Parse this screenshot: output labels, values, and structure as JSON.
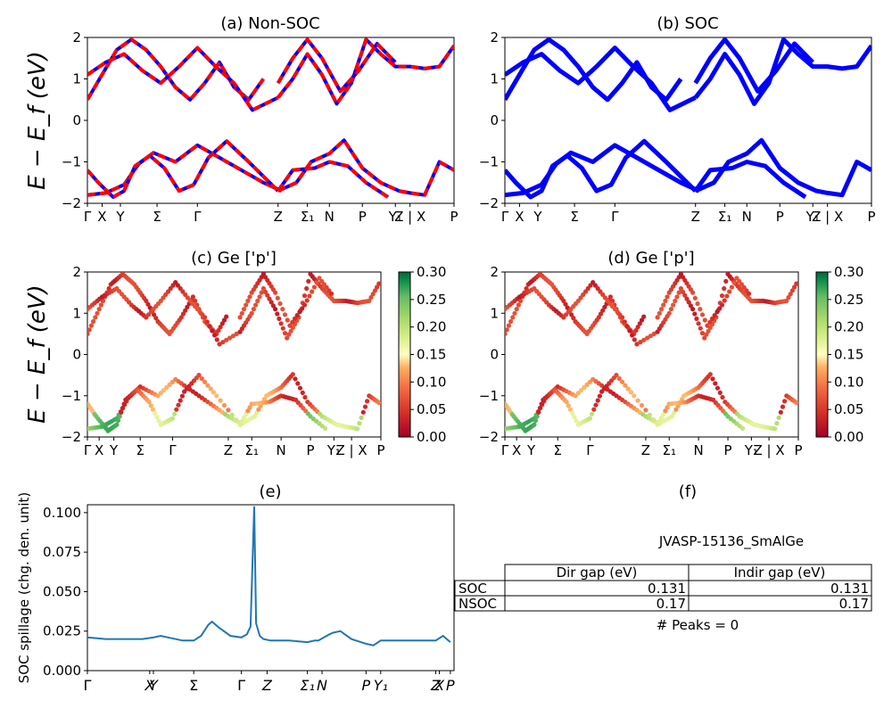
{
  "colors": {
    "nonsoc_red": "#ff0000",
    "soc_blue": "#0000ff",
    "spillage_line": "#1f77b4",
    "colormap": "RdYlGn"
  },
  "ylabel_band": "E − E_f (eV)",
  "kpath_full": [
    "Γ",
    "X",
    "Y",
    "Σ",
    "Γ",
    "Z",
    "Σ₁",
    "N",
    "P",
    "Y₁",
    "Z | X",
    "P"
  ],
  "kpath_c": [
    "Γ",
    "X",
    "Y",
    "Σ",
    "Γ",
    "Z",
    "Σ₁",
    "N",
    "P",
    "Y₁",
    "Z | X",
    "P"
  ],
  "kpath_e": [
    "Γ",
    "X",
    "Y",
    "Σ",
    "Γ",
    "Z",
    "Σ₁",
    "N",
    "P",
    "Y₁",
    "Z",
    "X",
    "P"
  ],
  "panels": {
    "a": {
      "title": "(a) Non-SOC"
    },
    "b": {
      "title": "(b) SOC"
    },
    "c": {
      "title": "(c)  Ge ['p']"
    },
    "d": {
      "title": "(d) Ge ['p']"
    },
    "e": {
      "title": "(e)",
      "ylabel": "SOC spillage (chg. den. unit)"
    },
    "f": {
      "title": "(f)"
    }
  },
  "colorbar": {
    "ticks": [
      "0.00",
      "0.05",
      "0.10",
      "0.15",
      "0.20",
      "0.25",
      "0.30"
    ],
    "min": 0,
    "max": 0.3
  },
  "table": {
    "material": "JVASP-15136_SmAlGe",
    "headers": [
      "Dir gap (eV)",
      "Indir gap (eV)"
    ],
    "rows": [
      {
        "label": "SOC",
        "dir": "0.131",
        "indir": "0.131"
      },
      {
        "label": "NSOC",
        "dir": "0.17",
        "indir": "0.17"
      }
    ],
    "peaks": "# Peaks = 0"
  },
  "chart_data": [
    {
      "type": "line",
      "title": "(a) Non-SOC",
      "ylabel": "E − E_f (eV)",
      "ylim": [
        -2,
        2
      ],
      "yticks": [
        -2,
        -1,
        0,
        1,
        2
      ],
      "x_ticks": [
        0,
        0.04,
        0.09,
        0.19,
        0.3,
        0.52,
        0.6,
        0.66,
        0.75,
        0.84,
        0.88,
        1.0
      ],
      "x_tick_labels": [
        "Γ",
        "X",
        "Y",
        "Σ",
        "Γ",
        "Z",
        "Σ₁",
        "N",
        "P",
        "Y₁",
        "Z | X",
        "P"
      ],
      "series": [
        {
          "x": [
            0,
            0.05,
            0.1,
            0.14,
            0.18,
            0.24,
            0.3,
            0.36,
            0.42,
            0.48,
            0.53
          ],
          "y": [
            -1.8,
            -1.75,
            -1.55,
            -1.05,
            -0.78,
            -1.0,
            -0.6,
            -0.9,
            -1.2,
            -1.5,
            -1.7
          ]
        },
        {
          "x": [
            0,
            0.03,
            0.07,
            0.1,
            0.13,
            0.17,
            0.21,
            0.25,
            0.29,
            0.33,
            0.38,
            0.44,
            0.52
          ],
          "y": [
            -1.2,
            -1.5,
            -1.85,
            -1.7,
            -1.1,
            -0.85,
            -1.15,
            -1.7,
            -1.55,
            -0.9,
            -0.5,
            -1.0,
            -1.7
          ]
        },
        {
          "x": [
            0.52,
            0.57,
            0.61,
            0.66,
            0.7,
            0.75,
            0.8,
            0.85,
            0.88,
            0.92,
            0.96,
            1.0
          ],
          "y": [
            -1.7,
            -1.5,
            -1.0,
            -0.8,
            -0.48,
            -1.15,
            -1.5,
            -1.7,
            -1.75,
            -1.8,
            -1.0,
            -1.2
          ]
        },
        {
          "x": [
            0.52,
            0.56,
            0.62,
            0.66,
            0.71,
            0.76,
            0.82
          ],
          "y": [
            -1.7,
            -1.2,
            -1.15,
            -1.0,
            -1.1,
            -1.5,
            -1.85
          ]
        },
        {
          "x": [
            0,
            0.04,
            0.08,
            0.12,
            0.16,
            0.2,
            0.24,
            0.28,
            0.32,
            0.36,
            0.4,
            0.44,
            0.48
          ],
          "y": [
            0.5,
            1.1,
            1.7,
            1.95,
            1.7,
            1.3,
            0.8,
            0.5,
            0.9,
            1.4,
            0.8,
            0.5,
            1.0
          ]
        },
        {
          "x": [
            0,
            0.05,
            0.1,
            0.15,
            0.2,
            0.25,
            0.3,
            0.35,
            0.4,
            0.45,
            0.52
          ],
          "y": [
            1.1,
            1.4,
            1.6,
            1.2,
            0.9,
            1.3,
            1.75,
            1.3,
            0.9,
            0.25,
            0.55
          ]
        },
        {
          "x": [
            0.52,
            0.56,
            0.6,
            0.64,
            0.68,
            0.72,
            0.76,
            0.8,
            0.84,
            0.88,
            0.92,
            0.96,
            1.0
          ],
          "y": [
            0.55,
            1.0,
            1.6,
            1.1,
            0.4,
            0.9,
            1.95,
            1.6,
            1.3,
            1.3,
            1.25,
            1.3,
            1.8
          ]
        },
        {
          "x": [
            0.52,
            0.56,
            0.6,
            0.64,
            0.69,
            0.74,
            0.79,
            0.84
          ],
          "y": [
            0.9,
            1.5,
            1.95,
            1.5,
            0.7,
            1.2,
            1.85,
            1.4
          ]
        }
      ]
    },
    {
      "type": "line",
      "title": "(b) SOC",
      "ylim": [
        -2,
        2
      ],
      "yticks": [
        -2,
        -1,
        0,
        1,
        2
      ],
      "x_ticks": [
        0,
        0.04,
        0.09,
        0.19,
        0.3,
        0.52,
        0.6,
        0.66,
        0.75,
        0.84,
        0.88,
        1.0
      ],
      "x_tick_labels": [
        "Γ",
        "X",
        "Y",
        "Σ",
        "Γ",
        "Z",
        "Σ₁",
        "N",
        "P",
        "Y₁",
        "Z | X",
        "P"
      ],
      "series": [
        {
          "x": [
            0,
            0.05,
            0.1,
            0.14,
            0.18,
            0.24,
            0.3,
            0.36,
            0.42,
            0.48,
            0.53
          ],
          "y": [
            -1.8,
            -1.75,
            -1.55,
            -1.05,
            -0.78,
            -1.0,
            -0.6,
            -0.9,
            -1.2,
            -1.5,
            -1.7
          ]
        },
        {
          "x": [
            0,
            0.03,
            0.07,
            0.1,
            0.13,
            0.17,
            0.21,
            0.25,
            0.29,
            0.33,
            0.38,
            0.44,
            0.52
          ],
          "y": [
            -1.2,
            -1.5,
            -1.85,
            -1.7,
            -1.1,
            -0.85,
            -1.15,
            -1.7,
            -1.55,
            -0.9,
            -0.5,
            -1.0,
            -1.7
          ]
        },
        {
          "x": [
            0.52,
            0.57,
            0.61,
            0.66,
            0.7,
            0.75,
            0.8,
            0.85,
            0.88,
            0.92,
            0.96,
            1.0
          ],
          "y": [
            -1.7,
            -1.5,
            -1.0,
            -0.8,
            -0.48,
            -1.15,
            -1.5,
            -1.7,
            -1.75,
            -1.8,
            -1.0,
            -1.2
          ]
        },
        {
          "x": [
            0.52,
            0.56,
            0.62,
            0.66,
            0.71,
            0.76,
            0.82
          ],
          "y": [
            -1.7,
            -1.2,
            -1.15,
            -1.0,
            -1.1,
            -1.5,
            -1.85
          ]
        },
        {
          "x": [
            0,
            0.04,
            0.08,
            0.12,
            0.16,
            0.2,
            0.24,
            0.28,
            0.32,
            0.36,
            0.4,
            0.44,
            0.48
          ],
          "y": [
            0.5,
            1.1,
            1.7,
            1.95,
            1.7,
            1.3,
            0.8,
            0.5,
            0.9,
            1.4,
            0.8,
            0.5,
            1.0
          ]
        },
        {
          "x": [
            0,
            0.05,
            0.1,
            0.15,
            0.2,
            0.25,
            0.3,
            0.35,
            0.4,
            0.45,
            0.52
          ],
          "y": [
            1.1,
            1.4,
            1.6,
            1.2,
            0.9,
            1.3,
            1.75,
            1.3,
            0.9,
            0.25,
            0.55
          ]
        },
        {
          "x": [
            0.52,
            0.56,
            0.6,
            0.64,
            0.68,
            0.72,
            0.76,
            0.8,
            0.84,
            0.88,
            0.92,
            0.96,
            1.0
          ],
          "y": [
            0.55,
            1.0,
            1.6,
            1.1,
            0.4,
            0.9,
            1.95,
            1.6,
            1.3,
            1.3,
            1.25,
            1.3,
            1.8
          ]
        },
        {
          "x": [
            0.52,
            0.56,
            0.6,
            0.64,
            0.69,
            0.74,
            0.79,
            0.84
          ],
          "y": [
            0.9,
            1.5,
            1.95,
            1.5,
            0.7,
            1.2,
            1.85,
            1.4
          ]
        }
      ]
    },
    {
      "type": "scatter",
      "title": "(c)  Ge ['p']",
      "ylabel": "E − E_f (eV)",
      "ylim": [
        -2,
        2
      ],
      "yticks": [
        -2,
        -1,
        0,
        1,
        2
      ],
      "colorbar_range": [
        0,
        0.3
      ],
      "x_ticks": [
        0,
        0.04,
        0.09,
        0.18,
        0.29,
        0.48,
        0.56,
        0.66,
        0.76,
        0.84,
        0.9,
        1.0
      ],
      "x_tick_labels": [
        "Γ",
        "X",
        "Y",
        "Σ",
        "Γ",
        "Z",
        "Σ₁",
        "N",
        "P",
        "Y₁",
        "Z | X",
        "P"
      ]
    },
    {
      "type": "scatter",
      "title": "(d) Ge ['p']",
      "ylim": [
        -2,
        2
      ],
      "yticks": [
        -2,
        -1,
        0,
        1,
        2
      ],
      "colorbar_range": [
        0,
        0.3
      ],
      "x_ticks": [
        0,
        0.04,
        0.09,
        0.18,
        0.29,
        0.48,
        0.56,
        0.66,
        0.76,
        0.84,
        0.9,
        1.0
      ],
      "x_tick_labels": [
        "Γ",
        "X",
        "Y",
        "Σ",
        "Γ",
        "Z",
        "Σ₁",
        "N",
        "P",
        "Y₁",
        "Z | X",
        "P"
      ]
    },
    {
      "type": "line",
      "title": "(e)",
      "ylabel": "SOC spillage (chg. den. unit)",
      "ylim": [
        0,
        0.105
      ],
      "yticks": [
        0.0,
        0.025,
        0.05,
        0.075,
        0.1
      ],
      "ytick_labels": [
        "0.000",
        "0.025",
        "0.050",
        "0.075",
        "0.100"
      ],
      "x_ticks": [
        0,
        0.17,
        0.18,
        0.29,
        0.42,
        0.49,
        0.6,
        0.64,
        0.76,
        0.8,
        0.95,
        0.96,
        0.99
      ],
      "x_tick_labels": [
        "Γ",
        "X",
        "Y",
        "Σ",
        "Γ",
        "Z",
        "Σ₁",
        "N",
        "P",
        "Y₁",
        "Z",
        "X",
        "P"
      ],
      "x": [
        0,
        0.05,
        0.1,
        0.15,
        0.18,
        0.2,
        0.22,
        0.26,
        0.29,
        0.31,
        0.33,
        0.34,
        0.36,
        0.39,
        0.42,
        0.435,
        0.445,
        0.455,
        0.46,
        0.47,
        0.48,
        0.5,
        0.55,
        0.6,
        0.62,
        0.63,
        0.66,
        0.67,
        0.69,
        0.72,
        0.76,
        0.78,
        0.8,
        0.82,
        0.9,
        0.95,
        0.97,
        0.99
      ],
      "y": [
        0.021,
        0.02,
        0.02,
        0.02,
        0.021,
        0.022,
        0.021,
        0.019,
        0.019,
        0.022,
        0.029,
        0.031,
        0.027,
        0.022,
        0.021,
        0.023,
        0.028,
        0.104,
        0.03,
        0.022,
        0.02,
        0.019,
        0.019,
        0.018,
        0.019,
        0.019,
        0.023,
        0.024,
        0.025,
        0.02,
        0.017,
        0.016,
        0.019,
        0.019,
        0.019,
        0.019,
        0.022,
        0.018
      ]
    }
  ]
}
